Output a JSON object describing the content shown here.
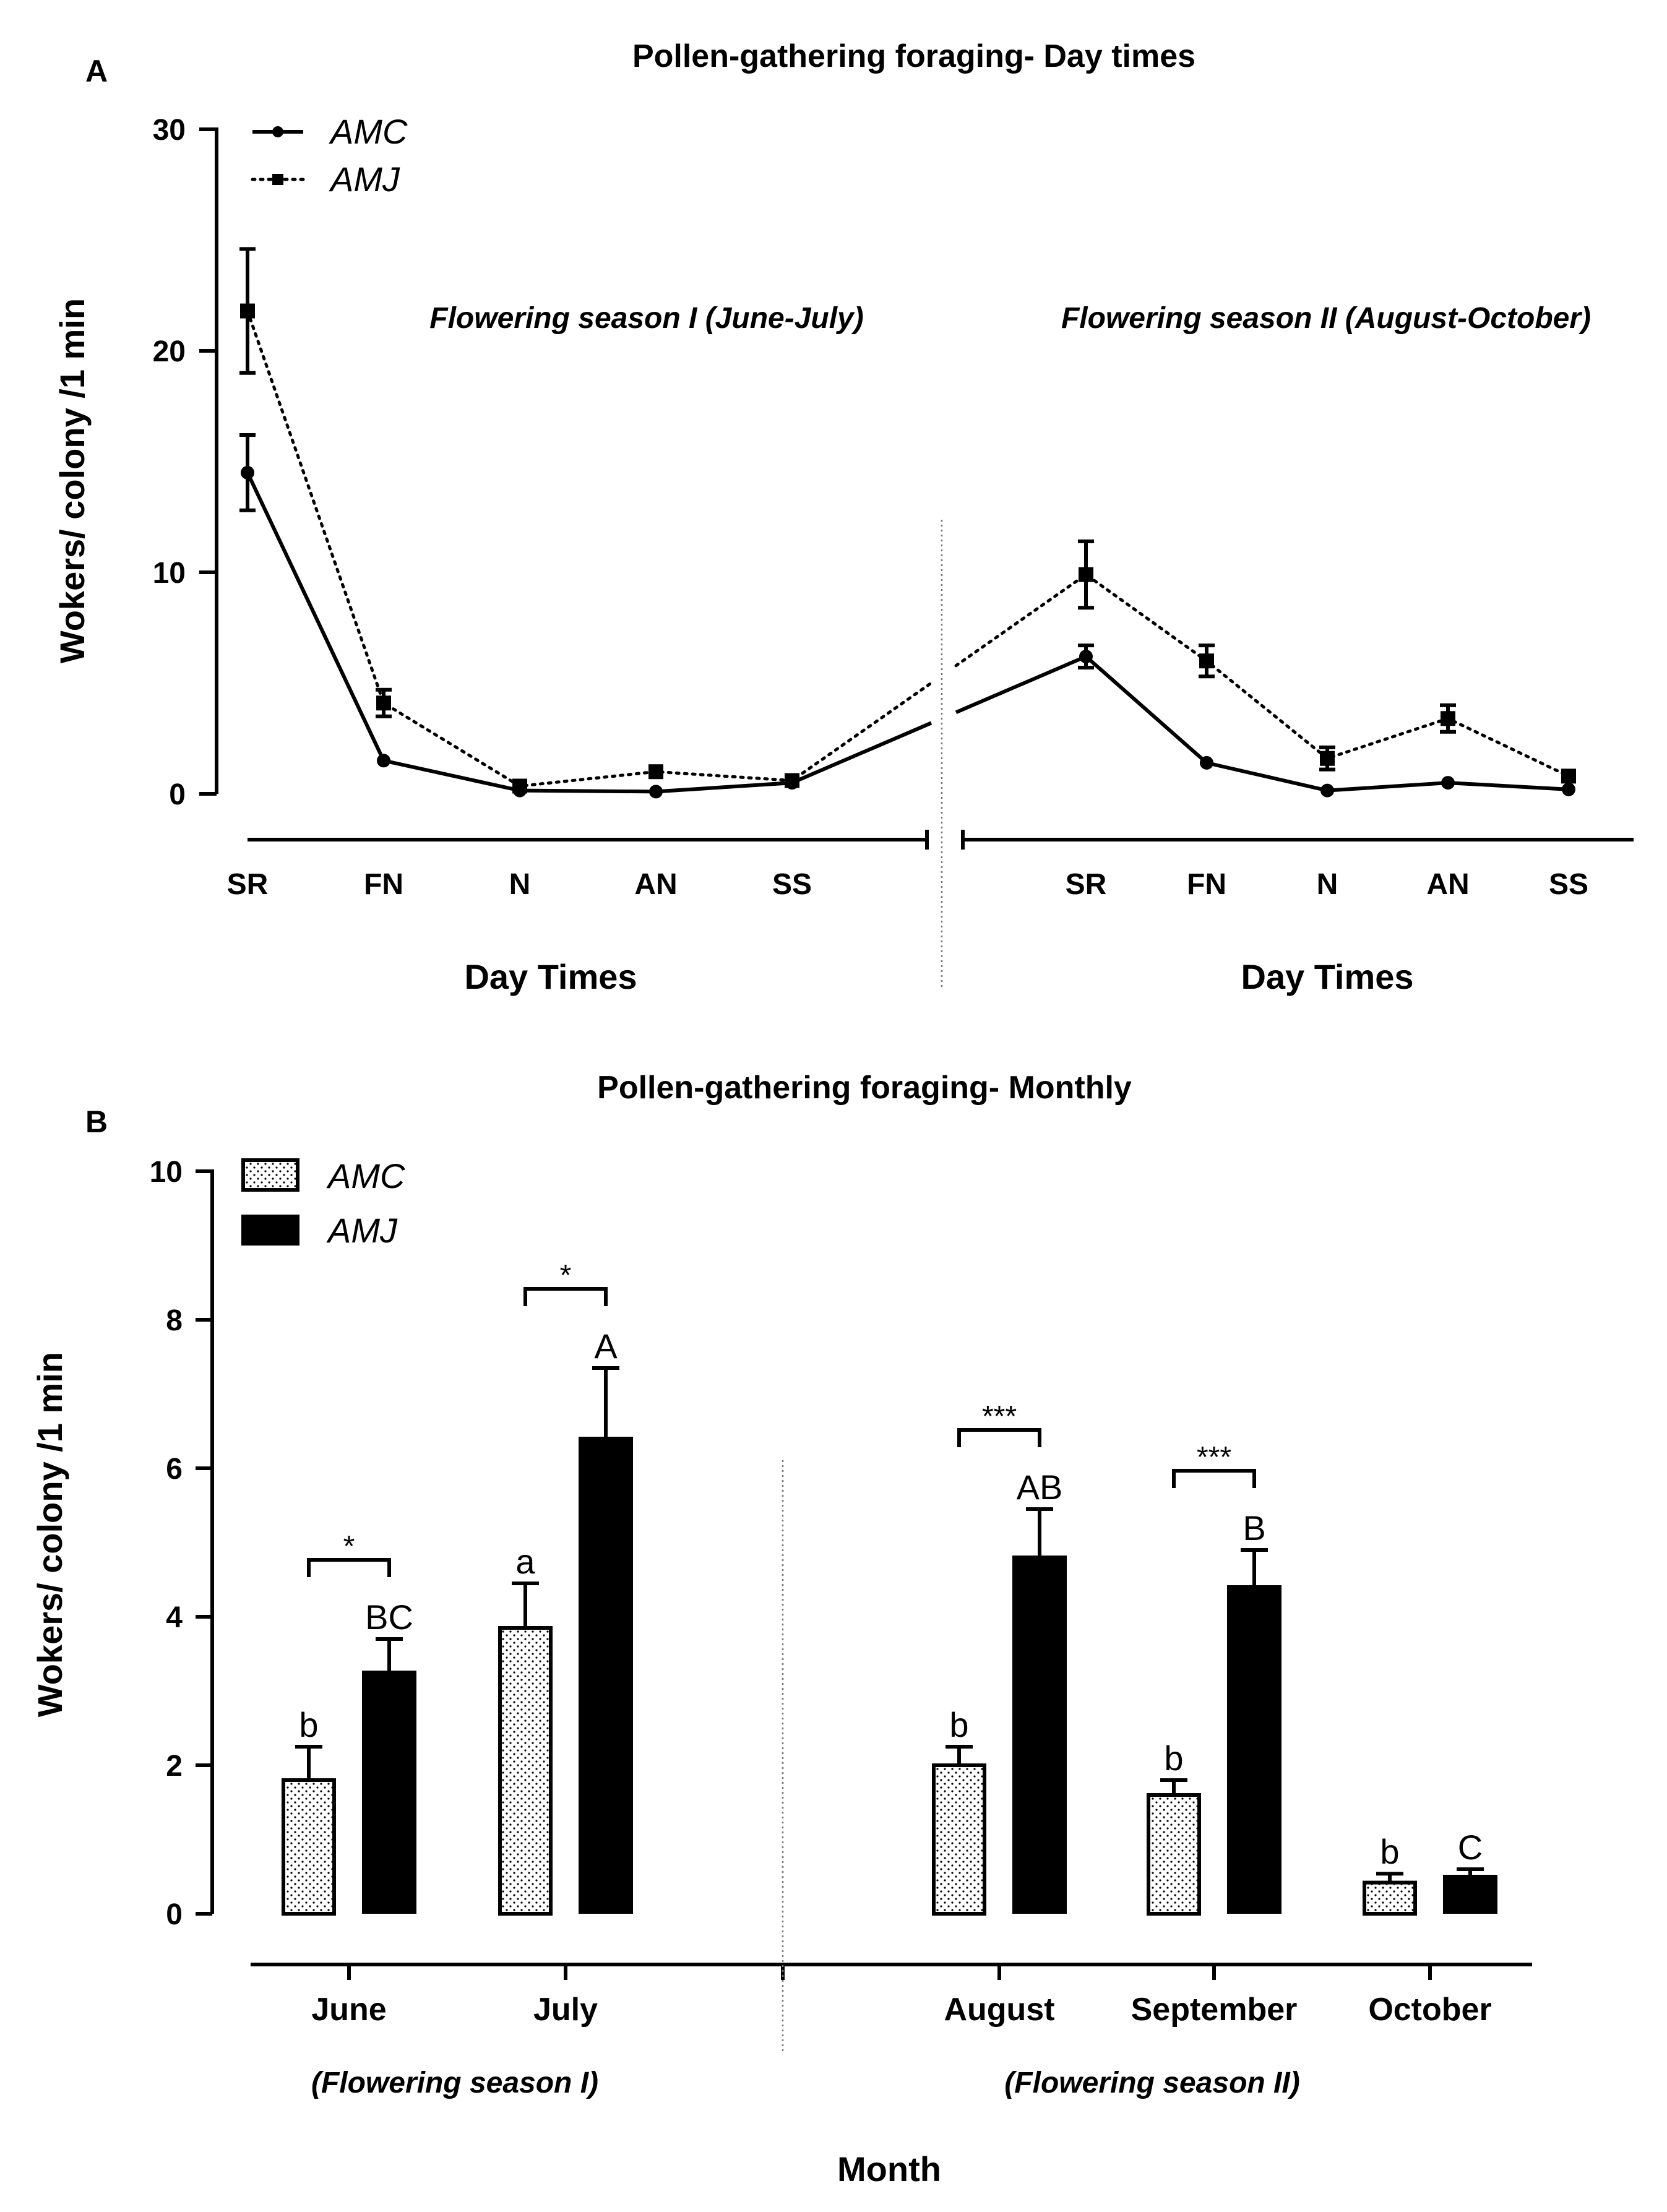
{
  "panel_a": {
    "letter": "A",
    "title": "Pollen-gathering foraging- Day times",
    "ylabel": "Wokers/ colony /1 min",
    "xlabel": "Day Times",
    "season_labels": [
      "Flowering season I (June-July)",
      "Flowering season II (August-October)"
    ],
    "y_ticks": [
      "0",
      "10",
      "20",
      "30"
    ],
    "legend": [
      "AMC",
      "AMJ"
    ]
  },
  "panel_b": {
    "letter": "B",
    "title": "Pollen-gathering foraging- Monthly",
    "ylabel": "Wokers/ colony /1 min",
    "xlabel": "Month",
    "season_labels": [
      "(Flowering season I)",
      "(Flowering season II)"
    ],
    "y_ticks": [
      "0",
      "2",
      "4",
      "6",
      "8",
      "10"
    ],
    "legend": [
      "AMC",
      "AMJ"
    ]
  },
  "colors": {
    "ink": "#000000",
    "amc_fill": "#ffffff",
    "amj_fill": "#000000"
  },
  "chart_data": [
    {
      "type": "line",
      "title": "Pollen-gathering foraging- Day times",
      "xlabel": "Day Times",
      "ylabel": "Wokers/ colony /1 min",
      "ylim": [
        0,
        30
      ],
      "y_ticks": [
        0,
        10,
        20,
        30
      ],
      "grid": false,
      "legend_position": "top-left",
      "groups": [
        {
          "label": "Flowering season I (June-July)",
          "categories": [
            "SR",
            "FN",
            "N",
            "AN",
            "SS"
          ],
          "series": [
            {
              "name": "AMC",
              "style": "solid-circle",
              "values": [
                14.5,
                1.5,
                0.15,
                0.1,
                0.5
              ],
              "errors": [
                1.7,
                0,
                0,
                0,
                0
              ]
            },
            {
              "name": "AMJ",
              "style": "dotted-square",
              "values": [
                21.8,
                4.1,
                0.35,
                1.0,
                0.6
              ],
              "errors": [
                2.8,
                0.6,
                0,
                0,
                0
              ]
            }
          ]
        },
        {
          "label": "Flowering season II (August-October)",
          "categories": [
            "SR",
            "FN",
            "N",
            "AN",
            "SS"
          ],
          "series": [
            {
              "name": "AMC",
              "style": "solid-circle",
              "values": [
                6.2,
                1.4,
                0.15,
                0.5,
                0.2
              ],
              "errors": [
                0.5,
                0,
                0,
                0,
                0
              ]
            },
            {
              "name": "AMJ",
              "style": "dotted-square",
              "values": [
                9.9,
                6.0,
                1.6,
                3.4,
                0.8
              ],
              "errors": [
                1.5,
                0.7,
                0.5,
                0.6,
                0
              ]
            }
          ]
        }
      ]
    },
    {
      "type": "bar",
      "title": "Pollen-gathering foraging- Monthly",
      "xlabel": "Month",
      "ylabel": "Wokers/ colony /1 min",
      "ylim": [
        0,
        10
      ],
      "y_ticks": [
        0,
        2,
        4,
        6,
        8,
        10
      ],
      "grid": false,
      "legend_position": "top-left",
      "categories": [
        "June",
        "July",
        "August",
        "September",
        "October"
      ],
      "category_groups": [
        "(Flowering season I)",
        "(Flowering season I)",
        "(Flowering season II)",
        "(Flowering season II)",
        "(Flowering season II)"
      ],
      "series": [
        {
          "name": "AMC",
          "fill": "dotted",
          "values": [
            1.8,
            3.85,
            2.0,
            1.6,
            0.42
          ],
          "errors": [
            0.45,
            0.6,
            0.25,
            0.2,
            0.12
          ],
          "letters": [
            "b",
            "a",
            "b",
            "b",
            "b"
          ]
        },
        {
          "name": "AMJ",
          "fill": "solid",
          "values": [
            3.25,
            6.4,
            4.8,
            4.4,
            0.5
          ],
          "errors": [
            0.45,
            0.95,
            0.65,
            0.5,
            0.1
          ],
          "letters": [
            "BC",
            "A",
            "AB",
            "B",
            "C"
          ]
        }
      ],
      "significance": [
        "*",
        "*",
        "***",
        "***",
        ""
      ]
    }
  ]
}
